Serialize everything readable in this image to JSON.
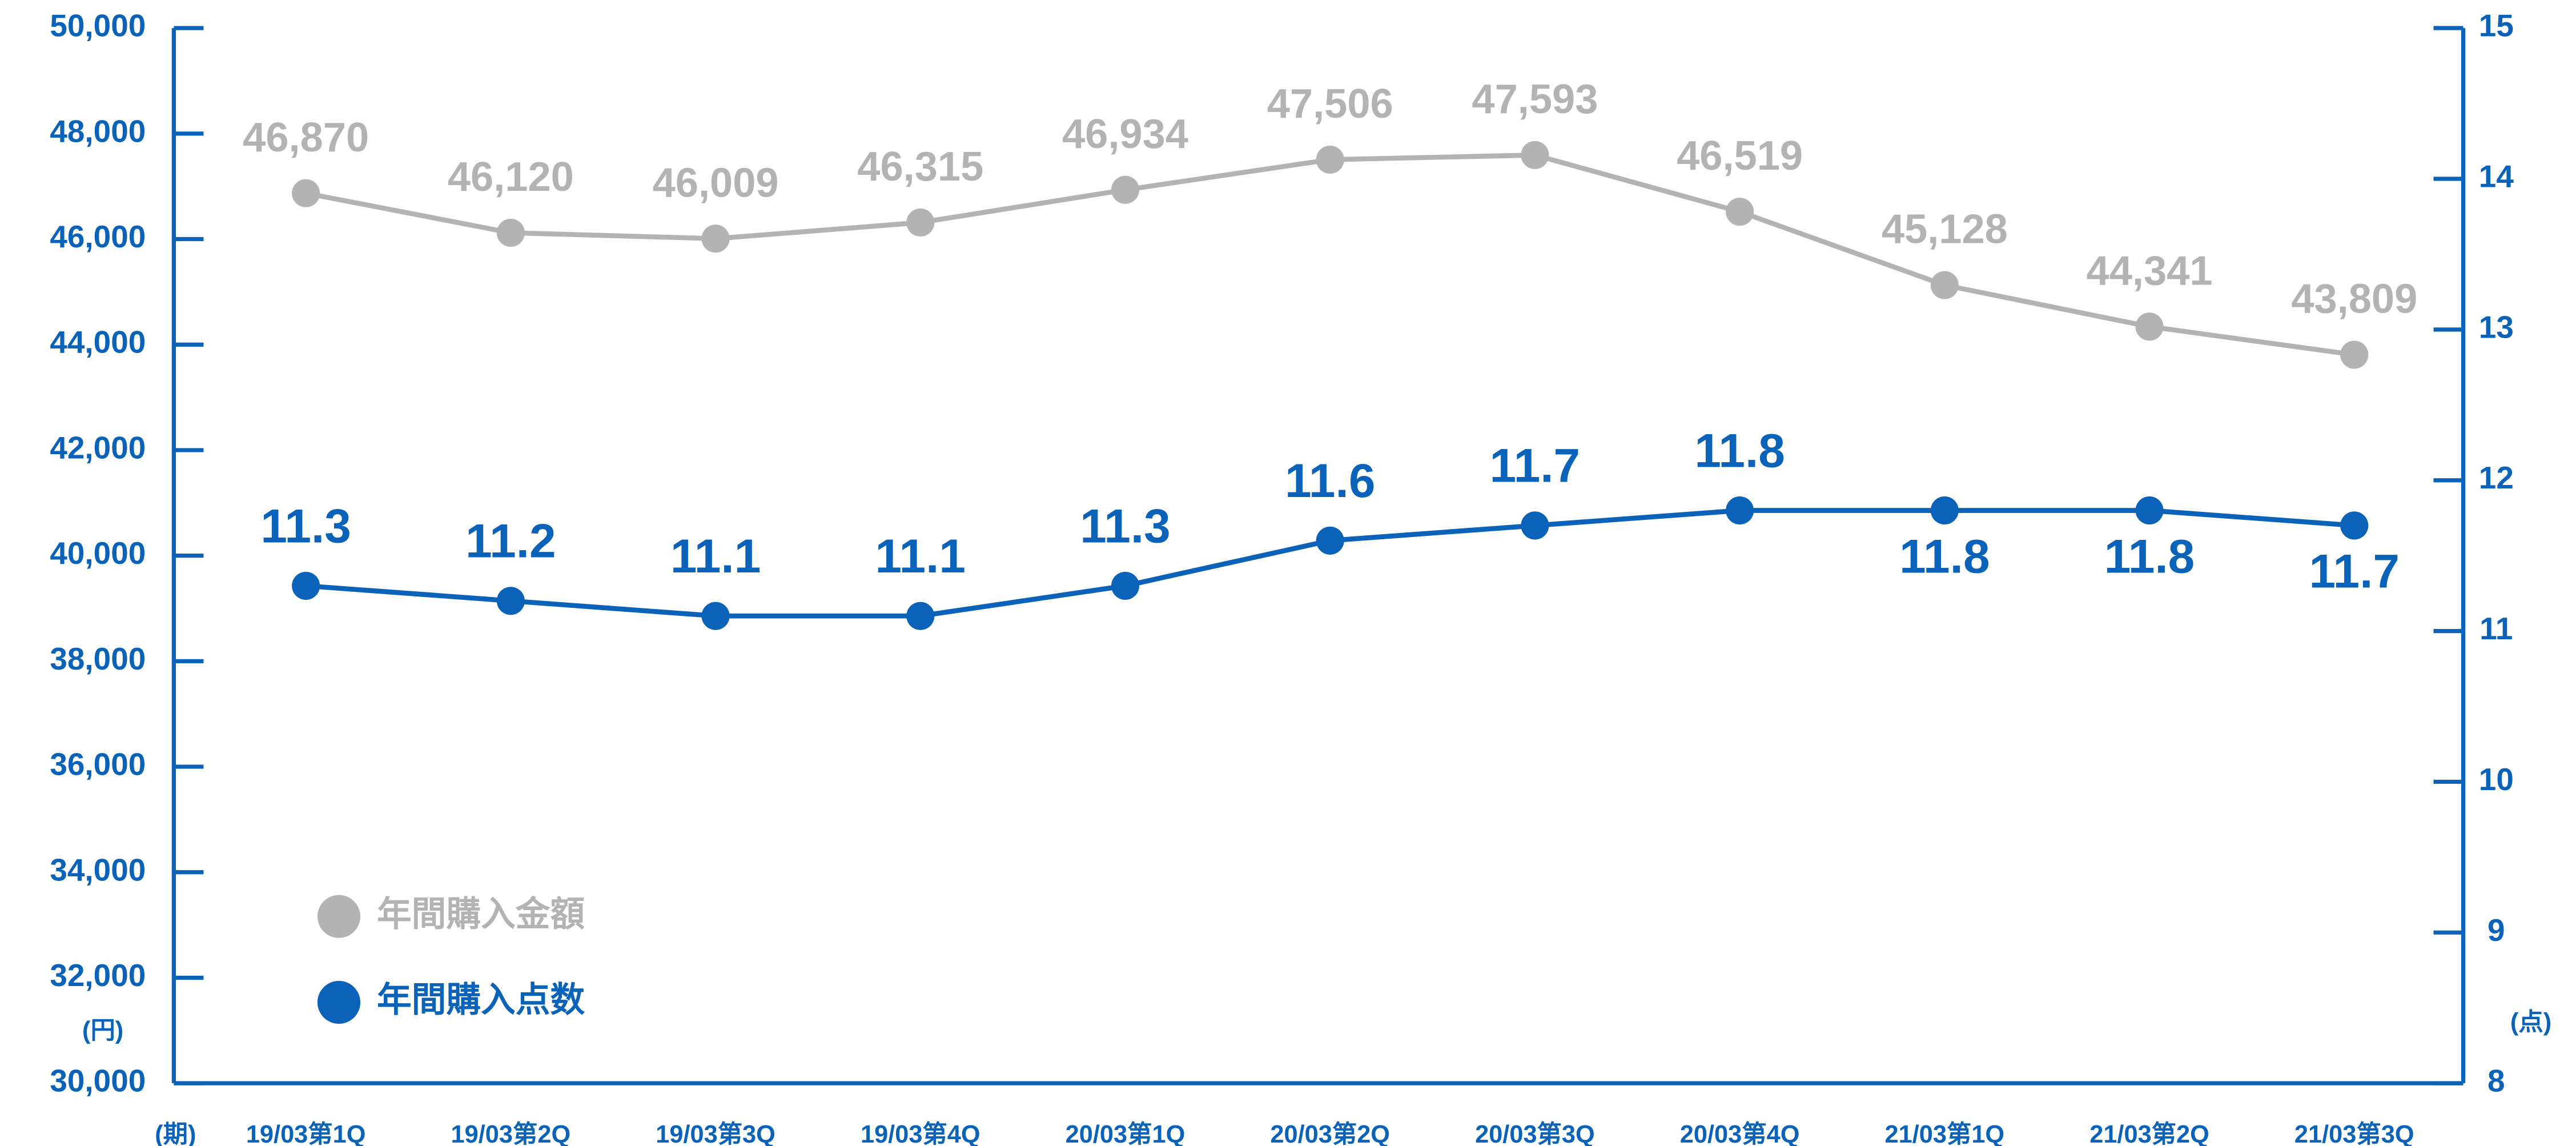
{
  "chart_data": {
    "type": "line",
    "ylabel": "(円)",
    "y2label": "(点)",
    "xlabel": "(期)",
    "categories": [
      "19/03第1Q",
      "19/03第2Q",
      "19/03第3Q",
      "19/03第4Q",
      "20/03第1Q",
      "20/03第2Q",
      "20/03第3Q",
      "20/03第4Q",
      "21/03第1Q",
      "21/03第2Q",
      "21/03第3Q"
    ],
    "series": [
      {
        "name": "年間購入金額",
        "color": "#b3b3b3",
        "values": [
          46870,
          46120,
          46009,
          46315,
          46934,
          47506,
          47593,
          46519,
          45128,
          44341,
          43809
        ],
        "value_labels": [
          "46,870",
          "46,120",
          "46,009",
          "46,315",
          "46,934",
          "47,506",
          "47,593",
          "46,519",
          "45,128",
          "44,341",
          "43,809"
        ]
      },
      {
        "name": "年間購入点数",
        "color": "#0a63b8",
        "axis": "y2",
        "values": [
          11.3,
          11.2,
          11.1,
          11.1,
          11.3,
          11.6,
          11.7,
          11.8,
          11.8,
          11.8,
          11.7
        ]
      }
    ],
    "ylim": [
      30000,
      50000
    ],
    "yticks": [
      {
        "value": 30000,
        "label": "30,000"
      },
      {
        "value": 32000,
        "label": "32,000"
      },
      {
        "value": 34000,
        "label": "34,000"
      },
      {
        "value": 36000,
        "label": "36,000"
      },
      {
        "value": 38000,
        "label": "38,000"
      },
      {
        "value": 40000,
        "label": "40,000"
      },
      {
        "value": 42000,
        "label": "42,000"
      },
      {
        "value": 44000,
        "label": "44,000"
      },
      {
        "value": 46000,
        "label": "46,000"
      },
      {
        "value": 48000,
        "label": "48,000"
      },
      {
        "value": 50000,
        "label": "50,000"
      }
    ],
    "y2lim": [
      8,
      15
    ],
    "y2ticks": [
      8,
      9,
      10,
      11,
      12,
      13,
      14,
      15
    ],
    "grid": false
  }
}
